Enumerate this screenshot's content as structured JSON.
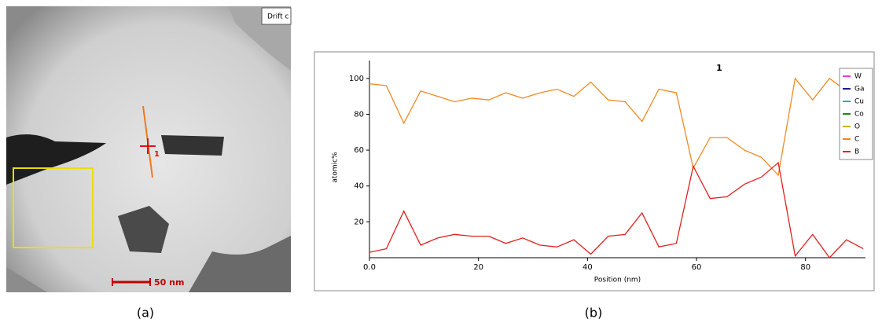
{
  "image": {
    "drift_label": "Drift c",
    "marker_label": "1",
    "scale_label": "50 nm"
  },
  "captions": [
    "(a)",
    "(b)"
  ],
  "chart_data": {
    "type": "line",
    "title": "1",
    "x_label": "Position (nm)",
    "y_label": "atomic%",
    "x": [
      0,
      3.1,
      6.3,
      9.4,
      12.5,
      15.6,
      18.8,
      21.9,
      25.0,
      28.1,
      31.3,
      34.4,
      37.5,
      40.6,
      43.8,
      46.9,
      50.0,
      53.1,
      56.3,
      59.4,
      62.5,
      65.6,
      68.8,
      71.9,
      75.0,
      78.1,
      81.3,
      84.4,
      87.5,
      90.6
    ],
    "series": [
      {
        "name": "W",
        "color": "#e040e0"
      },
      {
        "name": "Ga",
        "color": "#1a1a8c"
      },
      {
        "name": "Cu",
        "color": "#20b0b0"
      },
      {
        "name": "Co",
        "color": "#1a8a1a"
      },
      {
        "name": "O",
        "color": "#c8b400"
      },
      {
        "name": "C",
        "color": "#f08a24",
        "values": [
          97,
          96,
          75,
          93,
          90,
          87,
          89,
          88,
          92,
          89,
          92,
          94,
          90,
          98,
          88,
          87,
          76,
          94,
          92,
          50,
          67,
          67,
          60,
          56,
          46,
          100,
          88,
          100,
          93,
          null
        ]
      },
      {
        "name": "B",
        "color": "#e02020",
        "values": [
          3,
          5,
          26,
          7,
          11,
          13,
          12,
          12,
          8,
          11,
          7,
          6,
          10,
          2,
          12,
          13,
          25,
          6,
          8,
          51,
          33,
          34,
          41,
          45,
          53,
          1,
          13,
          0,
          10,
          5
        ]
      }
    ],
    "xlim": [
      0,
      91
    ],
    "ylim": [
      0,
      110
    ],
    "xticks": [
      {
        "value": 0,
        "label": "0.0"
      },
      20,
      40,
      60,
      80
    ],
    "yticks": [
      20,
      40,
      60,
      80,
      100
    ],
    "legend": "upper right"
  }
}
